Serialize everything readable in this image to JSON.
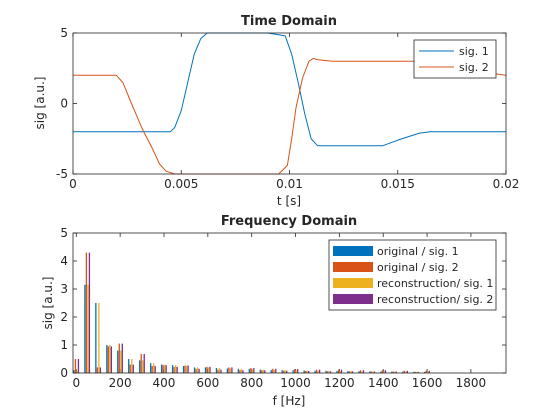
{
  "chart_data": [
    {
      "type": "line",
      "title": "Time Domain",
      "xlabel": "t [s]",
      "ylabel": "sig [a.u.]",
      "xlim": [
        0,
        0.02
      ],
      "ylim": [
        -5,
        5
      ],
      "xticks": [
        0,
        0.005,
        0.01,
        0.015,
        0.02
      ],
      "xtick_labels": [
        "0",
        "0.005",
        "0.01",
        "0.015",
        "0.02"
      ],
      "yticks": [
        -5,
        0,
        5
      ],
      "ytick_labels": [
        "-5",
        "0",
        "5"
      ],
      "grid": false,
      "legend_position": "top-right",
      "series": [
        {
          "name": "sig. 1",
          "color": "#0072BD",
          "x": [
            0,
            0.0045,
            0.0047,
            0.005,
            0.0053,
            0.0056,
            0.0059,
            0.0062,
            0.007,
            0.008,
            0.009,
            0.0098,
            0.0101,
            0.0104,
            0.0107,
            0.011,
            0.0113,
            0.012,
            0.013,
            0.0143,
            0.015,
            0.016,
            0.0165,
            0.02
          ],
          "y": [
            -2,
            -2,
            -1.7,
            -0.5,
            1.5,
            3.5,
            4.6,
            5,
            5,
            5,
            5,
            4.8,
            3.5,
            1.5,
            -0.7,
            -2.5,
            -3.0,
            -3.0,
            -3.0,
            -3.0,
            -2.6,
            -2.1,
            -2.0,
            -2.0
          ]
        },
        {
          "name": "sig. 2",
          "color": "#D95319",
          "x": [
            0,
            0.002,
            0.0023,
            0.0027,
            0.0032,
            0.0037,
            0.004,
            0.0043,
            0.0047,
            0.006,
            0.008,
            0.0095,
            0.0099,
            0.0101,
            0.0103,
            0.0106,
            0.0109,
            0.0111,
            0.0113,
            0.012,
            0.014,
            0.016,
            0.017,
            0.018,
            0.019,
            0.02
          ],
          "y": [
            2,
            2,
            1.5,
            0,
            -1.8,
            -3.3,
            -4.3,
            -4.8,
            -5,
            -5,
            -5,
            -5,
            -4.4,
            -2.5,
            -0.3,
            1.8,
            3.0,
            3.2,
            3.1,
            3.0,
            3.0,
            3.0,
            3.0,
            2.6,
            2.2,
            2.0
          ]
        }
      ]
    },
    {
      "type": "bar",
      "title": "Frequency Domain",
      "xlabel": "f [Hz]",
      "ylabel": "sig [a.u.]",
      "xlim": [
        -15,
        1960
      ],
      "ylim": [
        0,
        5
      ],
      "xticks": [
        0,
        200,
        400,
        600,
        800,
        1000,
        1200,
        1400,
        1600,
        1800
      ],
      "xtick_labels": [
        "0",
        "200",
        "400",
        "600",
        "800",
        "1000",
        "1200",
        "1400",
        "1600",
        "1800"
      ],
      "yticks": [
        0,
        1,
        2,
        3,
        4,
        5
      ],
      "ytick_labels": [
        "0",
        "1",
        "2",
        "3",
        "4",
        "5"
      ],
      "grid": false,
      "legend_position": "top-right",
      "x": [
        0,
        50,
        100,
        150,
        200,
        250,
        300,
        350,
        400,
        450,
        500,
        550,
        600,
        650,
        700,
        750,
        800,
        850,
        900,
        950,
        1000,
        1050,
        1100,
        1150,
        1200,
        1250,
        1300,
        1350,
        1400,
        1450,
        1500,
        1550,
        1600
      ],
      "series": [
        {
          "name": "original / sig. 1",
          "color": "#0072BD",
          "values": [
            0.1,
            3.15,
            2.5,
            1.0,
            0.8,
            0.5,
            0.45,
            0.35,
            0.3,
            0.28,
            0.25,
            0.2,
            0.2,
            0.18,
            0.16,
            0.15,
            0.14,
            0.12,
            0.11,
            0.1,
            0.1,
            0.09,
            0.08,
            0.08,
            0.07,
            0.07,
            0.06,
            0.06,
            0.05,
            0.05,
            0.05,
            0.04,
            0.04
          ]
        },
        {
          "name": "original / sig. 2",
          "color": "#D95319",
          "values": [
            0.5,
            4.3,
            0.2,
            0.95,
            1.05,
            0.3,
            0.68,
            0.25,
            0.28,
            0.22,
            0.27,
            0.15,
            0.22,
            0.12,
            0.2,
            0.1,
            0.18,
            0.1,
            0.15,
            0.08,
            0.14,
            0.07,
            0.12,
            0.06,
            0.12,
            0.06,
            0.1,
            0.05,
            0.1,
            0.05,
            0.08,
            0.04,
            0.08
          ]
        },
        {
          "name": "reconstruction/ sig. 1",
          "color": "#EDB120",
          "values": [
            0.1,
            3.15,
            2.5,
            1.0,
            0.8,
            0.5,
            0.45,
            0.35,
            0.3,
            0.28,
            0.25,
            0.2,
            0.2,
            0.18,
            0.16,
            0.15,
            0.14,
            0.12,
            0.11,
            0.1,
            0.1,
            0.09,
            0.08,
            0.08,
            0.07,
            0.07,
            0.06,
            0.06,
            0.05,
            0.05,
            0.05,
            0.04,
            0.04
          ]
        },
        {
          "name": "reconstruction/ sig. 2",
          "color": "#7E2F8E",
          "values": [
            0.5,
            4.3,
            0.2,
            0.95,
            1.05,
            0.3,
            0.68,
            0.25,
            0.28,
            0.22,
            0.27,
            0.15,
            0.22,
            0.12,
            0.2,
            0.1,
            0.18,
            0.1,
            0.15,
            0.08,
            0.14,
            0.07,
            0.12,
            0.06,
            0.12,
            0.06,
            0.1,
            0.05,
            0.1,
            0.05,
            0.08,
            0.04,
            0.08
          ]
        }
      ]
    }
  ]
}
